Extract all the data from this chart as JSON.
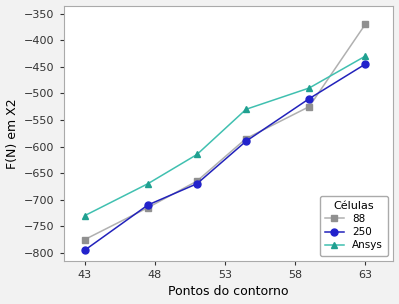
{
  "x": [
    43,
    47.5,
    51,
    54.5,
    59,
    63
  ],
  "y_88": [
    -775,
    -715,
    -665,
    -585,
    -525,
    -370
  ],
  "y_250": [
    -795,
    -710,
    -670,
    -590,
    -510,
    -445
  ],
  "y_ansys": [
    -730,
    -670,
    -615,
    -530,
    -490,
    -430
  ],
  "line_color_88": "#b0b0b0",
  "line_color_250": "#2222bb",
  "line_color_ansys": "#40c0b0",
  "marker_88": "s",
  "marker_250": "o",
  "marker_ansys": "^",
  "marker_color_88": "#909090",
  "marker_color_250": "#2222cc",
  "marker_color_ansys": "#20a090",
  "xlabel": "Pontos do contorno",
  "ylabel": "F(N) em X2",
  "legend_title": "Células",
  "legend_labels": [
    "88",
    "250",
    "Ansys"
  ],
  "xlim": [
    41.5,
    65
  ],
  "ylim": [
    -815,
    -335
  ],
  "xticks": [
    43,
    48,
    53,
    58,
    63
  ],
  "yticks": [
    -800,
    -750,
    -700,
    -650,
    -600,
    -550,
    -500,
    -450,
    -400,
    -350
  ],
  "background_color": "#ffffff",
  "fig_bg_color": "#f2f2f2",
  "grid": false
}
